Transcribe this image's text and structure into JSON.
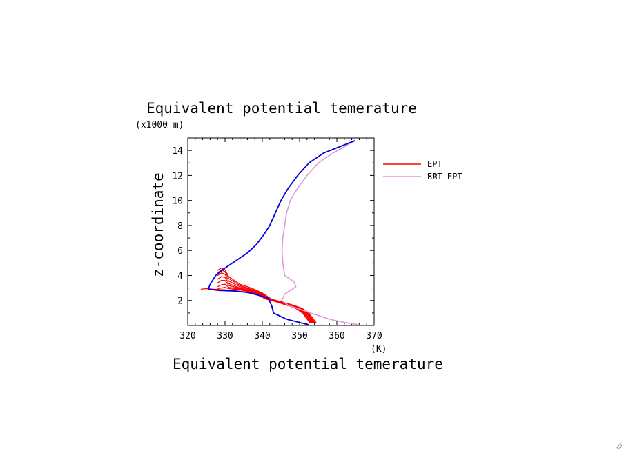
{
  "chart_data": {
    "type": "line",
    "title": "Equivalent potential temerature",
    "xlabel": "Equivalent potential temerature",
    "xunit": "(K)",
    "ylabel": "z-coordinate",
    "yunit": "(x1000 m)",
    "xlim": [
      320,
      370
    ],
    "ylim": [
      0,
      15
    ],
    "x_ticks": [
      320,
      330,
      340,
      350,
      360,
      370
    ],
    "y_ticks": [
      2,
      4,
      6,
      8,
      10,
      12,
      14
    ],
    "grid": false,
    "legend_position": "right",
    "colors": {
      "ept_ensemble": "#ff0000",
      "sat_ept": "#dd99dd",
      "ept_mean": "#0000dd"
    },
    "series": [
      {
        "name": "EPT",
        "role": "ensemble",
        "color": "#ff0000",
        "members": [
          [
            [
              354.5,
              0.2
            ],
            [
              353.5,
              0.6
            ],
            [
              352.5,
              1.0
            ],
            [
              350.5,
              1.4
            ],
            [
              347.5,
              1.7
            ],
            [
              345,
              1.9
            ],
            [
              342.5,
              2.1
            ],
            [
              340,
              2.6
            ],
            [
              337,
              3.0
            ],
            [
              334,
              3.3
            ],
            [
              331,
              3.9
            ],
            [
              330,
              4.45
            ],
            [
              329,
              4.6
            ],
            [
              328,
              4.4
            ]
          ],
          [
            [
              354.2,
              0.2
            ],
            [
              353.2,
              0.6
            ],
            [
              352.2,
              1.0
            ],
            [
              350.2,
              1.4
            ],
            [
              347.2,
              1.7
            ],
            [
              344.8,
              1.9
            ],
            [
              342.2,
              2.1
            ],
            [
              340,
              2.6
            ],
            [
              337,
              2.9
            ],
            [
              334,
              3.2
            ],
            [
              331,
              3.75
            ],
            [
              330,
              4.3
            ],
            [
              329,
              4.45
            ],
            [
              328,
              4.2
            ]
          ],
          [
            [
              354,
              0.2
            ],
            [
              353,
              0.6
            ],
            [
              352,
              1.0
            ],
            [
              350,
              1.4
            ],
            [
              347,
              1.7
            ],
            [
              344.6,
              1.9
            ],
            [
              342,
              2.1
            ],
            [
              340,
              2.55
            ],
            [
              337,
              2.85
            ],
            [
              334,
              3.1
            ],
            [
              331,
              3.55
            ],
            [
              330,
              4.1
            ],
            [
              329,
              4.2
            ],
            [
              328,
              4.0
            ]
          ],
          [
            [
              353.8,
              0.2
            ],
            [
              352.8,
              0.6
            ],
            [
              351.8,
              1.0
            ],
            [
              349.8,
              1.4
            ],
            [
              346.8,
              1.7
            ],
            [
              344.4,
              1.9
            ],
            [
              341.8,
              2.1
            ],
            [
              340,
              2.5
            ],
            [
              337,
              2.8
            ],
            [
              334,
              3.0
            ],
            [
              331,
              3.35
            ],
            [
              330,
              3.85
            ],
            [
              329,
              3.9
            ],
            [
              328,
              3.7
            ]
          ],
          [
            [
              353.5,
              0.2
            ],
            [
              352.5,
              0.6
            ],
            [
              351.5,
              1.0
            ],
            [
              349.5,
              1.4
            ],
            [
              346.5,
              1.7
            ],
            [
              344.2,
              1.9
            ],
            [
              341.6,
              2.1
            ],
            [
              340,
              2.45
            ],
            [
              337,
              2.75
            ],
            [
              334,
              2.95
            ],
            [
              331,
              3.2
            ],
            [
              330,
              3.6
            ],
            [
              329,
              3.6
            ],
            [
              328,
              3.4
            ]
          ],
          [
            [
              353.3,
              0.2
            ],
            [
              352.2,
              0.6
            ],
            [
              351.2,
              1.0
            ],
            [
              349.2,
              1.4
            ],
            [
              346.2,
              1.7
            ],
            [
              344,
              1.9
            ],
            [
              341.4,
              2.1
            ],
            [
              340,
              2.4
            ],
            [
              337,
              2.7
            ],
            [
              334,
              2.9
            ],
            [
              331,
              3.05
            ],
            [
              330,
              3.3
            ],
            [
              329,
              3.25
            ],
            [
              328,
              3.1
            ]
          ],
          [
            [
              353,
              0.2
            ],
            [
              352,
              0.6
            ],
            [
              351,
              1.0
            ],
            [
              349,
              1.4
            ],
            [
              346,
              1.7
            ],
            [
              343.8,
              1.9
            ],
            [
              341.2,
              2.1
            ],
            [
              340,
              2.35
            ],
            [
              337,
              2.65
            ],
            [
              334,
              2.85
            ],
            [
              331,
              2.95
            ],
            [
              330,
              3.05
            ],
            [
              329,
              3.0
            ],
            [
              328,
              2.95
            ]
          ],
          [
            [
              352.8,
              0.2
            ],
            [
              351.8,
              0.6
            ],
            [
              350.8,
              1.0
            ],
            [
              348.8,
              1.4
            ],
            [
              345.8,
              1.7
            ],
            [
              343.6,
              1.9
            ],
            [
              341,
              2.1
            ],
            [
              339,
              2.4
            ],
            [
              335,
              2.7
            ],
            [
              330,
              2.85
            ],
            [
              327,
              2.9
            ],
            [
              325,
              2.95
            ],
            [
              323.5,
              2.9
            ]
          ]
        ]
      },
      {
        "name": "SAT_EPT",
        "color": "#dd99dd",
        "points": [
          [
            366,
            0.05
          ],
          [
            362,
            0.25
          ],
          [
            358,
            0.5
          ],
          [
            354,
            0.9
          ],
          [
            350,
            1.3
          ],
          [
            347,
            1.6
          ],
          [
            345.2,
            2.0
          ],
          [
            346,
            2.5
          ],
          [
            348,
            2.9
          ],
          [
            349,
            3.1
          ],
          [
            348.5,
            3.5
          ],
          [
            346,
            4.0
          ],
          [
            345.5,
            5.0
          ],
          [
            345.3,
            6.0
          ],
          [
            345.5,
            7.0
          ],
          [
            346,
            8.0
          ],
          [
            346.5,
            9.0
          ],
          [
            347.5,
            10.0
          ],
          [
            349.5,
            11.0
          ],
          [
            352,
            12.0
          ],
          [
            355,
            13.0
          ],
          [
            359,
            13.8
          ],
          [
            365,
            14.8
          ]
        ]
      },
      {
        "name": "EPT",
        "role": "mean",
        "color": "#0000dd",
        "points": [
          [
            352.5,
            0.05
          ],
          [
            350.5,
            0.2
          ],
          [
            346.5,
            0.5
          ],
          [
            343,
            1.0
          ],
          [
            342.5,
            1.6
          ],
          [
            341.5,
            2.2
          ],
          [
            337,
            2.6
          ],
          [
            333,
            2.75
          ],
          [
            328.5,
            2.8
          ],
          [
            325.5,
            2.9
          ],
          [
            326,
            3.3
          ],
          [
            327.5,
            4.0
          ],
          [
            330,
            4.6
          ],
          [
            333,
            5.2
          ],
          [
            336,
            5.8
          ],
          [
            338.5,
            6.5
          ],
          [
            340.5,
            7.3
          ],
          [
            342,
            8.0
          ],
          [
            343.5,
            9.0
          ],
          [
            345,
            10.0
          ],
          [
            347,
            11.0
          ],
          [
            349.5,
            12.0
          ],
          [
            352.5,
            13.0
          ],
          [
            356.5,
            13.8
          ],
          [
            365,
            14.8
          ]
        ]
      }
    ],
    "legend": [
      {
        "label": "EPT",
        "color": "#ff0000"
      },
      {
        "label": "SAT_EPT",
        "color": "#dd99dd"
      },
      {
        "label": "EPT",
        "color": "#0000dd"
      }
    ]
  }
}
